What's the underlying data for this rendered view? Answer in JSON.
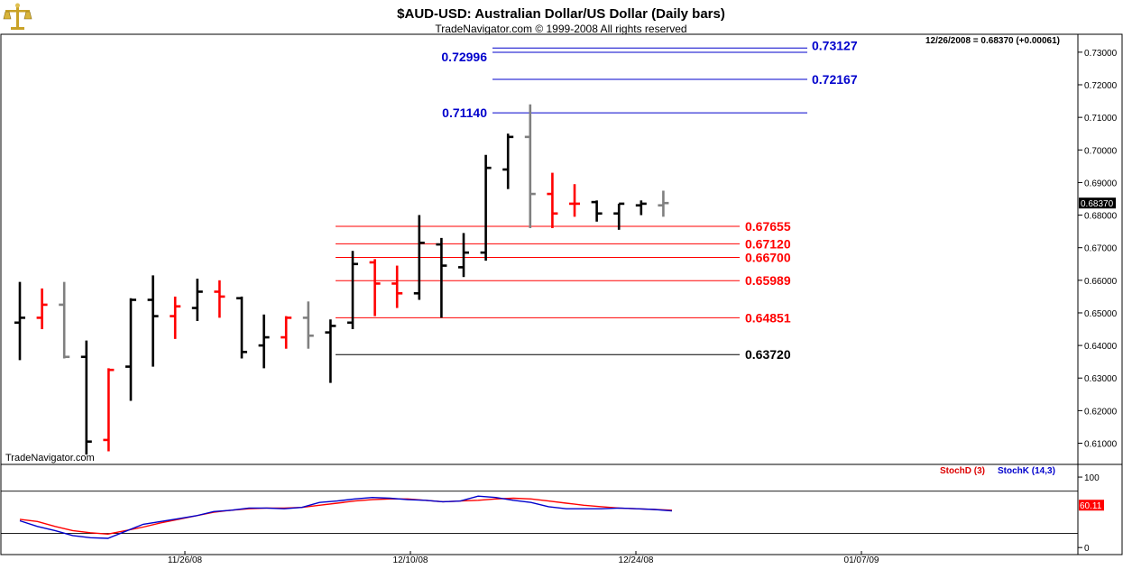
{
  "header": {
    "title": "$AUD-USD:  Australian Dollar/US Dollar  (Daily bars)",
    "copyright": "TradeNavigator.com © 1999-2008 All rights reserved",
    "last_quote": "12/26/2008 = 0.68370 (+0.00061)",
    "watermark": "TradeNavigator.com",
    "logo_icon": "scales-of-justice-icon"
  },
  "colors": {
    "up_bar": "#000000",
    "down_bar": "#ff0000",
    "neutral_bar": "#808080",
    "fib_extension": "#0000cc",
    "fib_retracement": "#dd0000",
    "swing_low": "#000000",
    "stoch_d": "#dd0000",
    "stoch_k": "#0000cc",
    "price_marker_bg": "#000000",
    "stoch_marker_bg": "#ff0000"
  },
  "chart_data": [
    {
      "type": "ohlc",
      "title": "$AUD-USD:  Australian Dollar/US Dollar  (Daily bars)",
      "x_tick_labels": [
        "11/26/08",
        "12/10/08",
        "12/24/08",
        "01/07/09"
      ],
      "y_tick_labels": [
        "0.61000",
        "0.62000",
        "0.63000",
        "0.64000",
        "0.65000",
        "0.66000",
        "0.67000",
        "0.68000",
        "0.69000",
        "0.70000",
        "0.71000",
        "0.72000",
        "0.73000"
      ],
      "ylim": [
        0.6035,
        0.7355
      ],
      "current_price": "0.68370",
      "bars": [
        {
          "o": 0.647,
          "h": 0.6595,
          "l": 0.6355,
          "c": 0.6485,
          "color": "black"
        },
        {
          "o": 0.6485,
          "h": 0.6575,
          "l": 0.645,
          "c": 0.6525,
          "color": "red"
        },
        {
          "o": 0.6525,
          "h": 0.6595,
          "l": 0.636,
          "c": 0.6365,
          "color": "gray"
        },
        {
          "o": 0.6365,
          "h": 0.6415,
          "l": 0.6065,
          "c": 0.6105,
          "color": "black"
        },
        {
          "o": 0.611,
          "h": 0.633,
          "l": 0.6075,
          "c": 0.6325,
          "color": "red"
        },
        {
          "o": 0.6335,
          "h": 0.6545,
          "l": 0.623,
          "c": 0.654,
          "color": "black"
        },
        {
          "o": 0.654,
          "h": 0.6615,
          "l": 0.6335,
          "c": 0.649,
          "color": "black"
        },
        {
          "o": 0.649,
          "h": 0.655,
          "l": 0.642,
          "c": 0.652,
          "color": "red"
        },
        {
          "o": 0.6515,
          "h": 0.6605,
          "l": 0.6475,
          "c": 0.6565,
          "color": "black"
        },
        {
          "o": 0.6565,
          "h": 0.66,
          "l": 0.6485,
          "c": 0.655,
          "color": "red"
        },
        {
          "o": 0.6545,
          "h": 0.655,
          "l": 0.636,
          "c": 0.638,
          "color": "black"
        },
        {
          "o": 0.64,
          "h": 0.6495,
          "l": 0.633,
          "c": 0.6425,
          "color": "black"
        },
        {
          "o": 0.6425,
          "h": 0.649,
          "l": 0.639,
          "c": 0.6485,
          "color": "red"
        },
        {
          "o": 0.6485,
          "h": 0.6535,
          "l": 0.639,
          "c": 0.643,
          "color": "gray"
        },
        {
          "o": 0.644,
          "h": 0.648,
          "l": 0.6285,
          "c": 0.646,
          "color": "black"
        },
        {
          "o": 0.647,
          "h": 0.669,
          "l": 0.645,
          "c": 0.665,
          "color": "black"
        },
        {
          "o": 0.6655,
          "h": 0.6665,
          "l": 0.649,
          "c": 0.659,
          "color": "red"
        },
        {
          "o": 0.659,
          "h": 0.6645,
          "l": 0.6515,
          "c": 0.656,
          "color": "red"
        },
        {
          "o": 0.656,
          "h": 0.68,
          "l": 0.654,
          "c": 0.6715,
          "color": "black"
        },
        {
          "o": 0.671,
          "h": 0.673,
          "l": 0.6485,
          "c": 0.6645,
          "color": "black"
        },
        {
          "o": 0.664,
          "h": 0.6745,
          "l": 0.661,
          "c": 0.6685,
          "color": "black"
        },
        {
          "o": 0.6685,
          "h": 0.6985,
          "l": 0.666,
          "c": 0.6945,
          "color": "black"
        },
        {
          "o": 0.694,
          "h": 0.705,
          "l": 0.688,
          "c": 0.704,
          "color": "black"
        },
        {
          "o": 0.704,
          "h": 0.714,
          "l": 0.676,
          "c": 0.6865,
          "color": "gray"
        },
        {
          "o": 0.6865,
          "h": 0.693,
          "l": 0.676,
          "c": 0.6805,
          "color": "red"
        },
        {
          "o": 0.6835,
          "h": 0.6895,
          "l": 0.6795,
          "c": 0.6835,
          "color": "red"
        },
        {
          "o": 0.684,
          "h": 0.6845,
          "l": 0.678,
          "c": 0.6805,
          "color": "black"
        },
        {
          "o": 0.6805,
          "h": 0.6835,
          "l": 0.6755,
          "c": 0.6835,
          "color": "black"
        },
        {
          "o": 0.683,
          "h": 0.6845,
          "l": 0.68,
          "c": 0.6835,
          "color": "black"
        },
        {
          "o": 0.683,
          "h": 0.6875,
          "l": 0.6795,
          "c": 0.6837,
          "color": "gray"
        }
      ],
      "levels": [
        {
          "value": 0.72996,
          "label": "0.72996",
          "color": "blue"
        },
        {
          "value": 0.73127,
          "label": "0.73127",
          "color": "blue"
        },
        {
          "value": 0.72167,
          "label": "0.72167",
          "color": "blue"
        },
        {
          "value": 0.7114,
          "label": "0.71140",
          "color": "blue"
        },
        {
          "value": 0.67655,
          "label": "0.67655",
          "color": "red"
        },
        {
          "value": 0.6712,
          "label": "0.67120",
          "color": "red"
        },
        {
          "value": 0.667,
          "label": "0.66700",
          "color": "red"
        },
        {
          "value": 0.65989,
          "label": "0.65989",
          "color": "red"
        },
        {
          "value": 0.64851,
          "label": "0.64851",
          "color": "red"
        },
        {
          "value": 0.6372,
          "label": "0.63720",
          "color": "black"
        }
      ]
    },
    {
      "type": "line",
      "ylim": [
        -10,
        118
      ],
      "y_tick_labels": [
        "0",
        "100"
      ],
      "reference_lines": [
        80,
        20
      ],
      "current_value": "60.11",
      "legend": [
        "StochD (3)",
        "StochK (14,3)"
      ],
      "series": [
        {
          "name": "StochD (3)",
          "color": "red",
          "values": [
            40,
            37,
            30,
            24,
            21,
            19,
            24,
            29,
            35,
            40,
            45,
            50,
            53,
            55,
            56,
            56,
            57,
            60,
            63,
            66,
            68,
            69,
            69,
            67,
            65,
            66,
            67,
            69,
            70,
            69,
            66,
            63,
            60,
            58,
            56,
            55,
            54,
            53
          ]
        },
        {
          "name": "StochK (14,3)",
          "color": "blue",
          "values": [
            38,
            30,
            24,
            17,
            14,
            13,
            23,
            33,
            37,
            41,
            45,
            51,
            53,
            56,
            56,
            55,
            57,
            64,
            66,
            69,
            71,
            70,
            68,
            67,
            65,
            66,
            73,
            71,
            67,
            64,
            58,
            55,
            55,
            55,
            56,
            55,
            54,
            52
          ]
        }
      ]
    }
  ]
}
